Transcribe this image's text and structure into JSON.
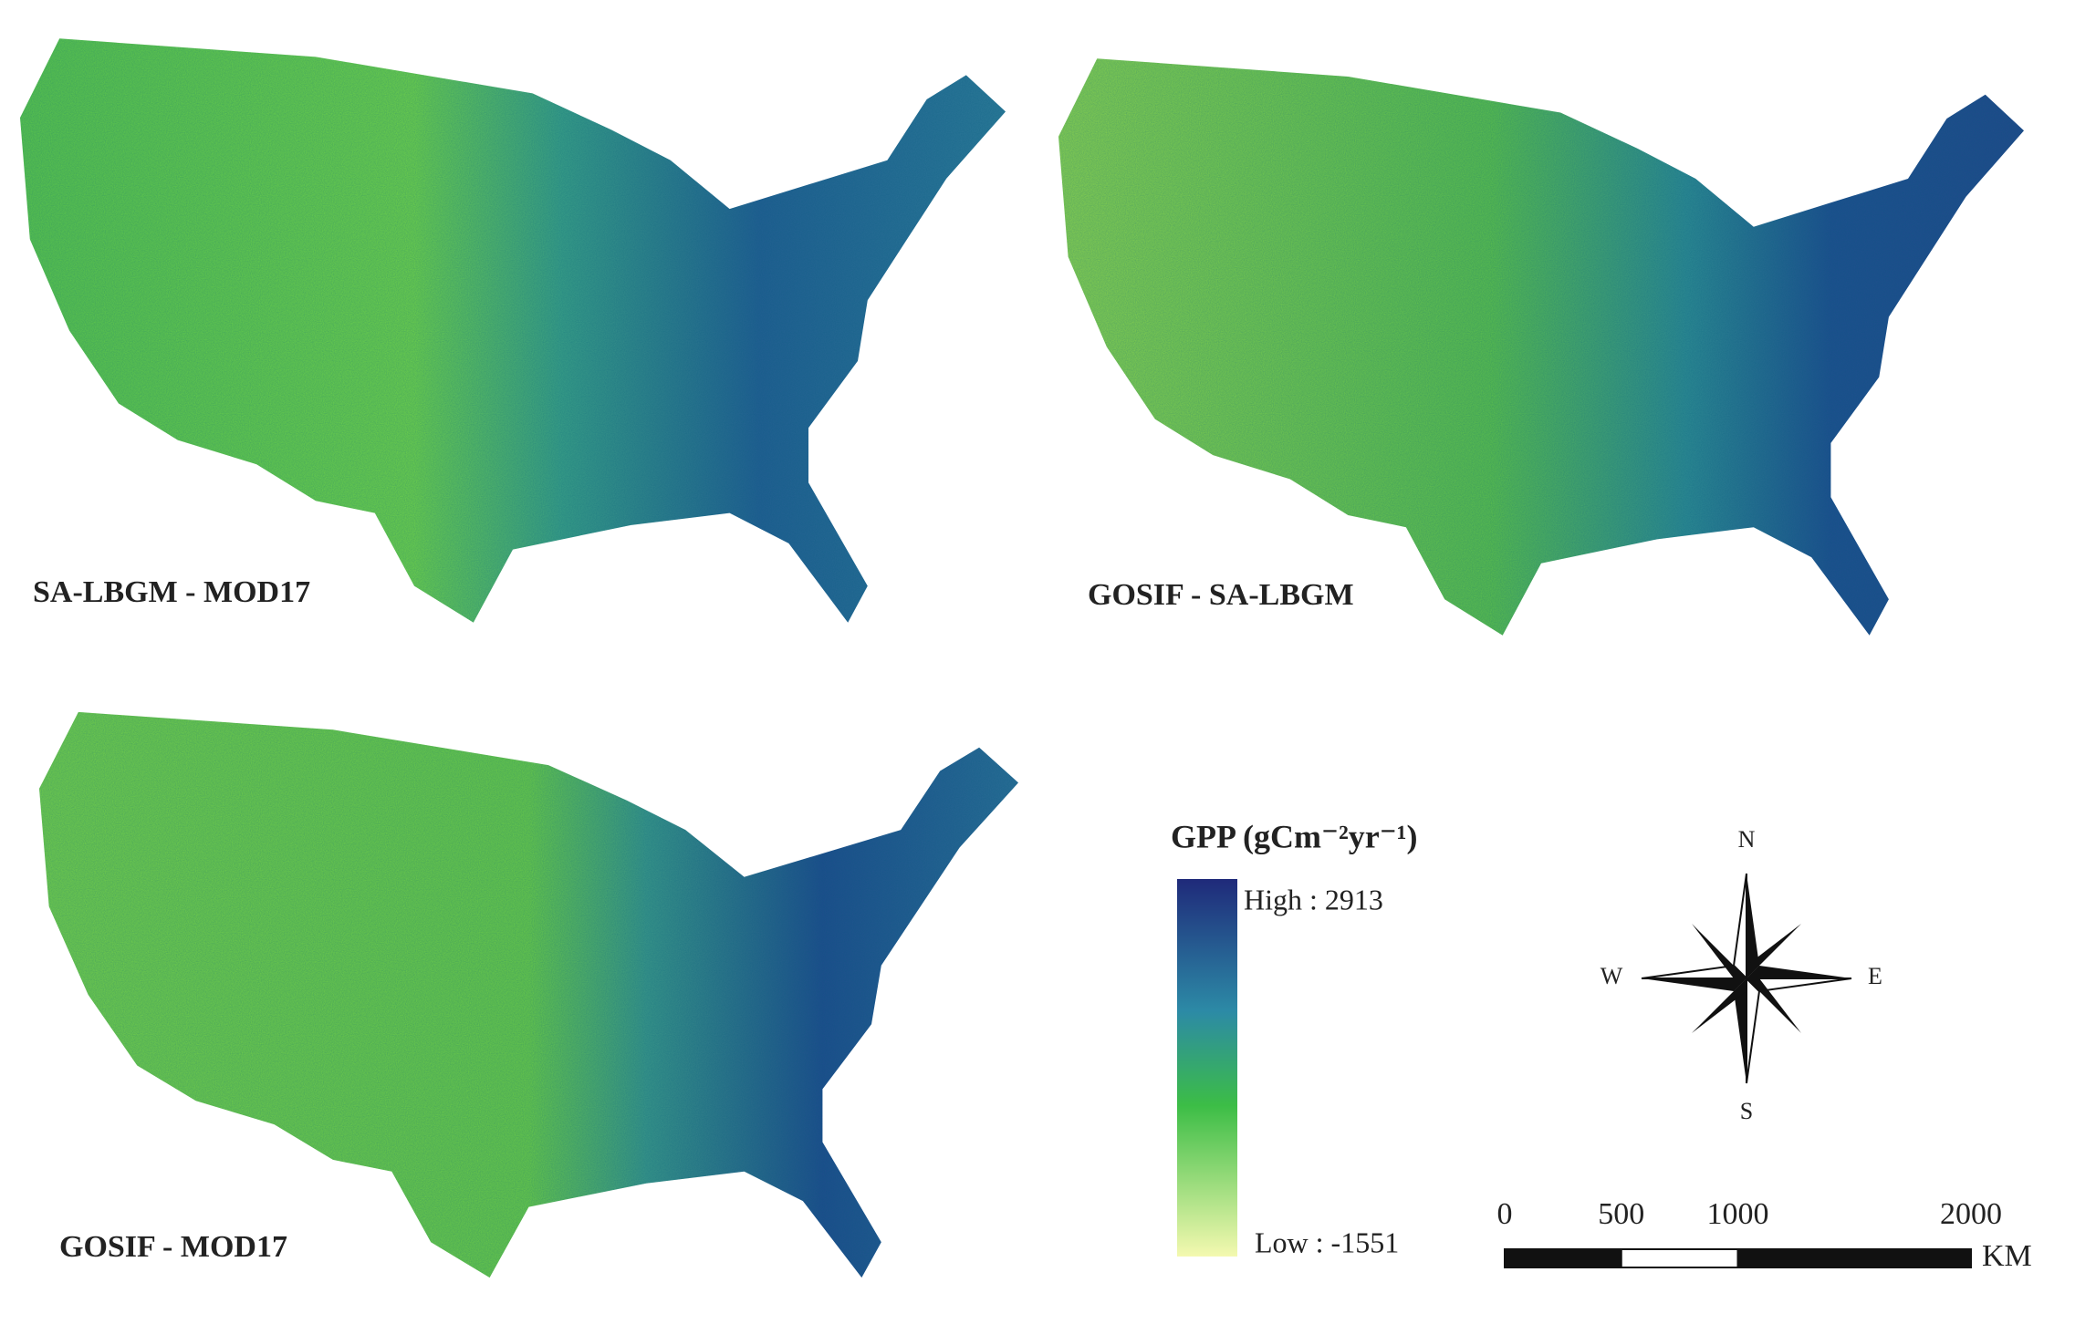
{
  "maps": [
    {
      "label": "SA-LBGM - MOD17"
    },
    {
      "label": "GOSIF - SA-LBGM"
    },
    {
      "label": "GOSIF - MOD17"
    }
  ],
  "legend": {
    "title": "GPP (gCm⁻²yr⁻¹)",
    "high": "High : 2913",
    "low": "Low : -1551"
  },
  "compass": {
    "n": "N",
    "s": "S",
    "w": "W",
    "e": "E"
  },
  "scale_bar": {
    "ticks": [
      0,
      500,
      1000,
      2000
    ],
    "unit": "KM"
  }
}
